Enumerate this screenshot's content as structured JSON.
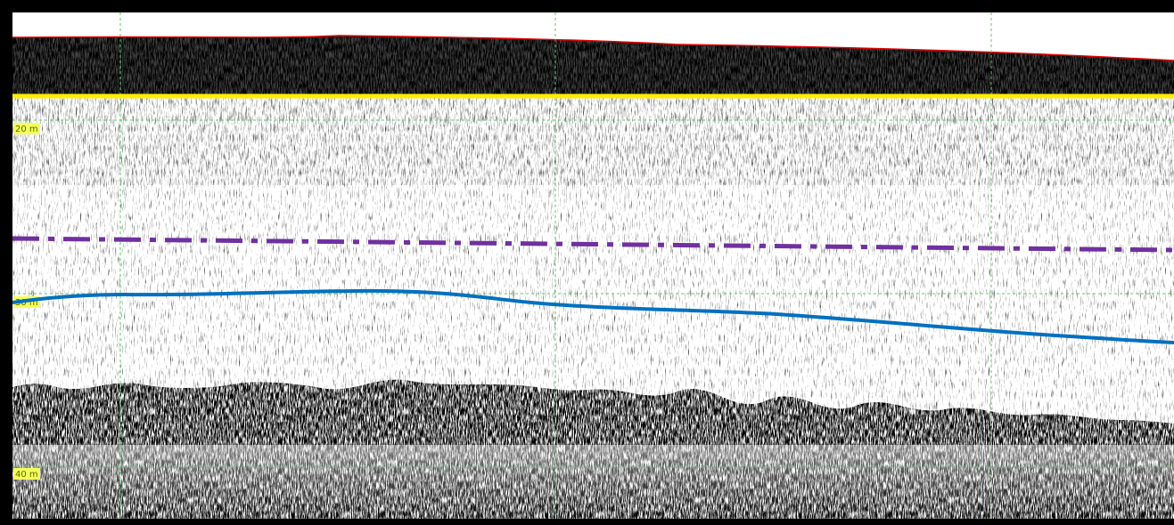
{
  "depth_labels": [
    "20 m",
    "30 m",
    "40 m"
  ]
}
